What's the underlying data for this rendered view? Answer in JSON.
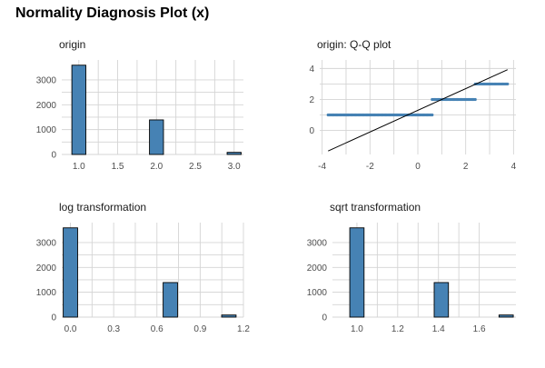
{
  "chart_data": {
    "title": "Normality Diagnosis Plot (x)",
    "panels": [
      {
        "key": "origin",
        "type": "bar",
        "title": "origin",
        "ylim": [
          0,
          3800
        ],
        "xlim": [
          0.78,
          3.12
        ],
        "yticks": [
          0,
          1000,
          2000,
          3000
        ],
        "ytick_labels": [
          "0",
          "1000",
          "2000",
          "3000"
        ],
        "xticks": [
          1.0,
          1.5,
          2.0,
          2.5,
          3.0
        ],
        "xtick_labels": [
          "1.0",
          "1.5",
          "2.0",
          "2.5",
          "3.0"
        ],
        "bin_width": 0.18,
        "bins": [
          1.0,
          2.0,
          3.0
        ],
        "counts": [
          3590,
          1390,
          85
        ]
      },
      {
        "key": "qq",
        "type": "scatter",
        "title": "origin: Q-Q plot",
        "xlim": [
          -4.1,
          4.1
        ],
        "ylim": [
          -1.55,
          4.55
        ],
        "xticks": [
          -4,
          -2,
          0,
          2,
          4
        ],
        "xtick_labels": [
          "-4",
          "-2",
          "0",
          "2",
          "4"
        ],
        "yticks": [
          0,
          2,
          4
        ],
        "ytick_labels": [
          "0",
          "2",
          "4"
        ],
        "segments": [
          {
            "value": 1,
            "x_from": -3.75,
            "x_to": 0.6
          },
          {
            "value": 2,
            "x_from": 0.6,
            "x_to": 2.4
          },
          {
            "value": 3,
            "x_from": 2.4,
            "x_to": 3.75
          }
        ],
        "reference_line": {
          "slope": 0.7,
          "intercept": 1.3,
          "x_from": -3.75,
          "x_to": 3.75
        }
      },
      {
        "key": "log",
        "type": "bar",
        "title": "log transformation",
        "ylim": [
          0,
          3800
        ],
        "xlim": [
          -0.06,
          1.2
        ],
        "yticks": [
          0,
          1000,
          2000,
          3000
        ],
        "ytick_labels": [
          "0",
          "1000",
          "2000",
          "3000"
        ],
        "xticks": [
          0.0,
          0.3,
          0.6,
          0.9,
          1.2
        ],
        "xtick_labels": [
          "0.0",
          "0.3",
          "0.6",
          "0.9",
          "1.2"
        ],
        "bin_width": 0.1,
        "bins": [
          0.0,
          0.693,
          1.099
        ],
        "counts": [
          3590,
          1390,
          85
        ]
      },
      {
        "key": "sqrt",
        "type": "bar",
        "title": "sqrt transformation",
        "ylim": [
          0,
          3800
        ],
        "xlim": [
          0.88,
          1.78
        ],
        "yticks": [
          0,
          1000,
          2000,
          3000
        ],
        "ytick_labels": [
          "0",
          "1000",
          "2000",
          "3000"
        ],
        "xticks": [
          1.0,
          1.2,
          1.4,
          1.6
        ],
        "xtick_labels": [
          "1.0",
          "1.2",
          "1.4",
          "1.6"
        ],
        "bin_width": 0.07,
        "bins": [
          1.0,
          1.414,
          1.732
        ],
        "counts": [
          3590,
          1390,
          85
        ]
      }
    ]
  }
}
